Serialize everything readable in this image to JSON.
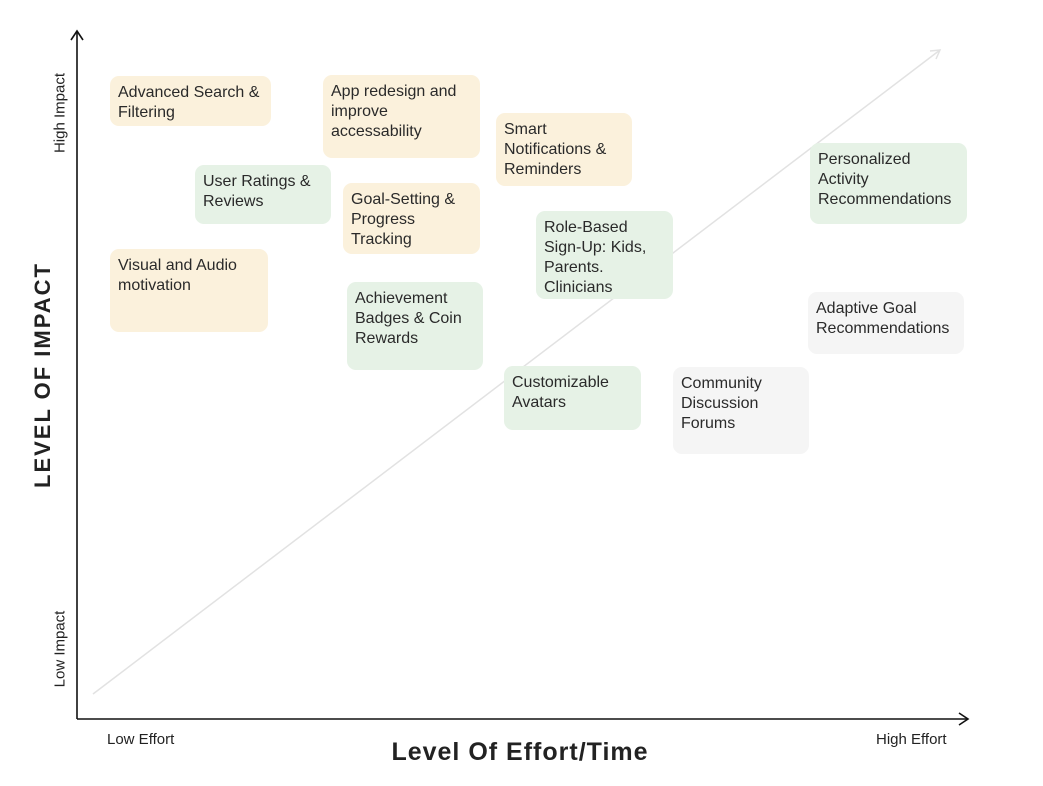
{
  "diagram": {
    "x_axis_title": "Level Of Effort/Time",
    "y_axis_title": "LEVEL OF IMPACT",
    "x_low_label": "Low Effort",
    "x_high_label": "High Effort",
    "y_low_label": "Low Impact",
    "y_high_label": "High Impact",
    "colors": {
      "yellow": "#fbf1dc",
      "green": "#e6f2e6",
      "gray": "#f5f5f5",
      "axis": "#111111",
      "diagonal": "#e2e2e2"
    },
    "items": [
      {
        "text": "Advanced Search & Filtering",
        "color": "yellow"
      },
      {
        "text": "App redesign and improve accessability",
        "color": "yellow"
      },
      {
        "text": "Smart Notifications & Reminders",
        "color": "yellow"
      },
      {
        "text": "User Ratings & Reviews",
        "color": "green"
      },
      {
        "text": "Goal-Setting & Progress Tracking",
        "color": "yellow"
      },
      {
        "text": "Personalized Activity Recommendations",
        "color": "green"
      },
      {
        "text": "Role-Based Sign-Up: Kids, Parents. Clinicians",
        "color": "green"
      },
      {
        "text": "Visual and Audio motivation",
        "color": "yellow"
      },
      {
        "text": "Achievement Badges & Coin Rewards",
        "color": "green"
      },
      {
        "text": "Adaptive Goal Recommendations",
        "color": "gray"
      },
      {
        "text": "Customizable Avatars",
        "color": "green"
      },
      {
        "text": "Community Discussion Forums",
        "color": "gray"
      }
    ]
  }
}
